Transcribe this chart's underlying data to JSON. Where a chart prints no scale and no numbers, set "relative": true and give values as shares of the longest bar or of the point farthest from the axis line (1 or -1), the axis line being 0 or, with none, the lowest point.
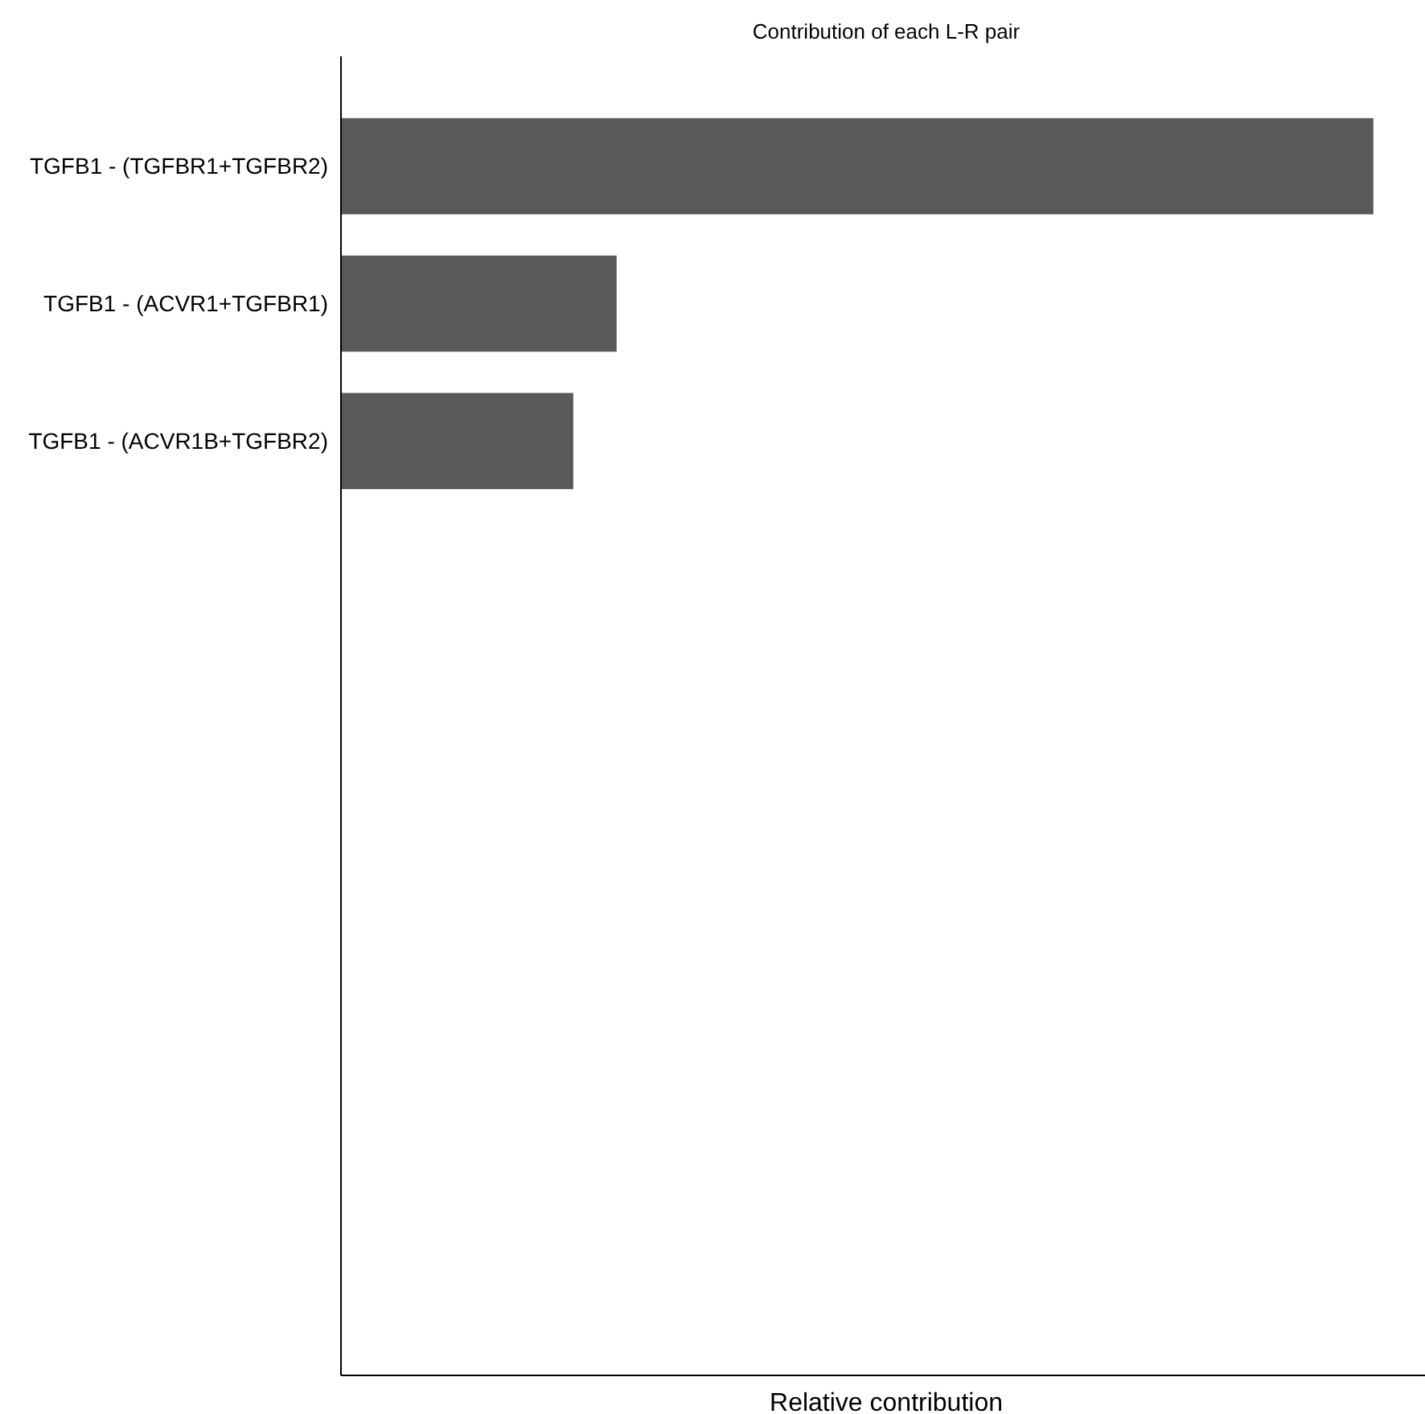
{
  "chart_data": {
    "type": "bar",
    "orientation": "horizontal",
    "relative": true,
    "title": "Contribution of each L-R pair",
    "xlabel": "Relative contribution",
    "categories": [
      "TGFB1 - (TGFBR1+TGFBR2)",
      "TGFB1 - (ACVR1+TGFBR1)",
      "TGFB1 - (ACVR1B+TGFBR2)",
      null,
      null,
      null,
      null,
      null,
      null
    ],
    "values": [
      1,
      0.267,
      0.225,
      null,
      null,
      null,
      null,
      null,
      null
    ],
    "color": "#595959"
  }
}
